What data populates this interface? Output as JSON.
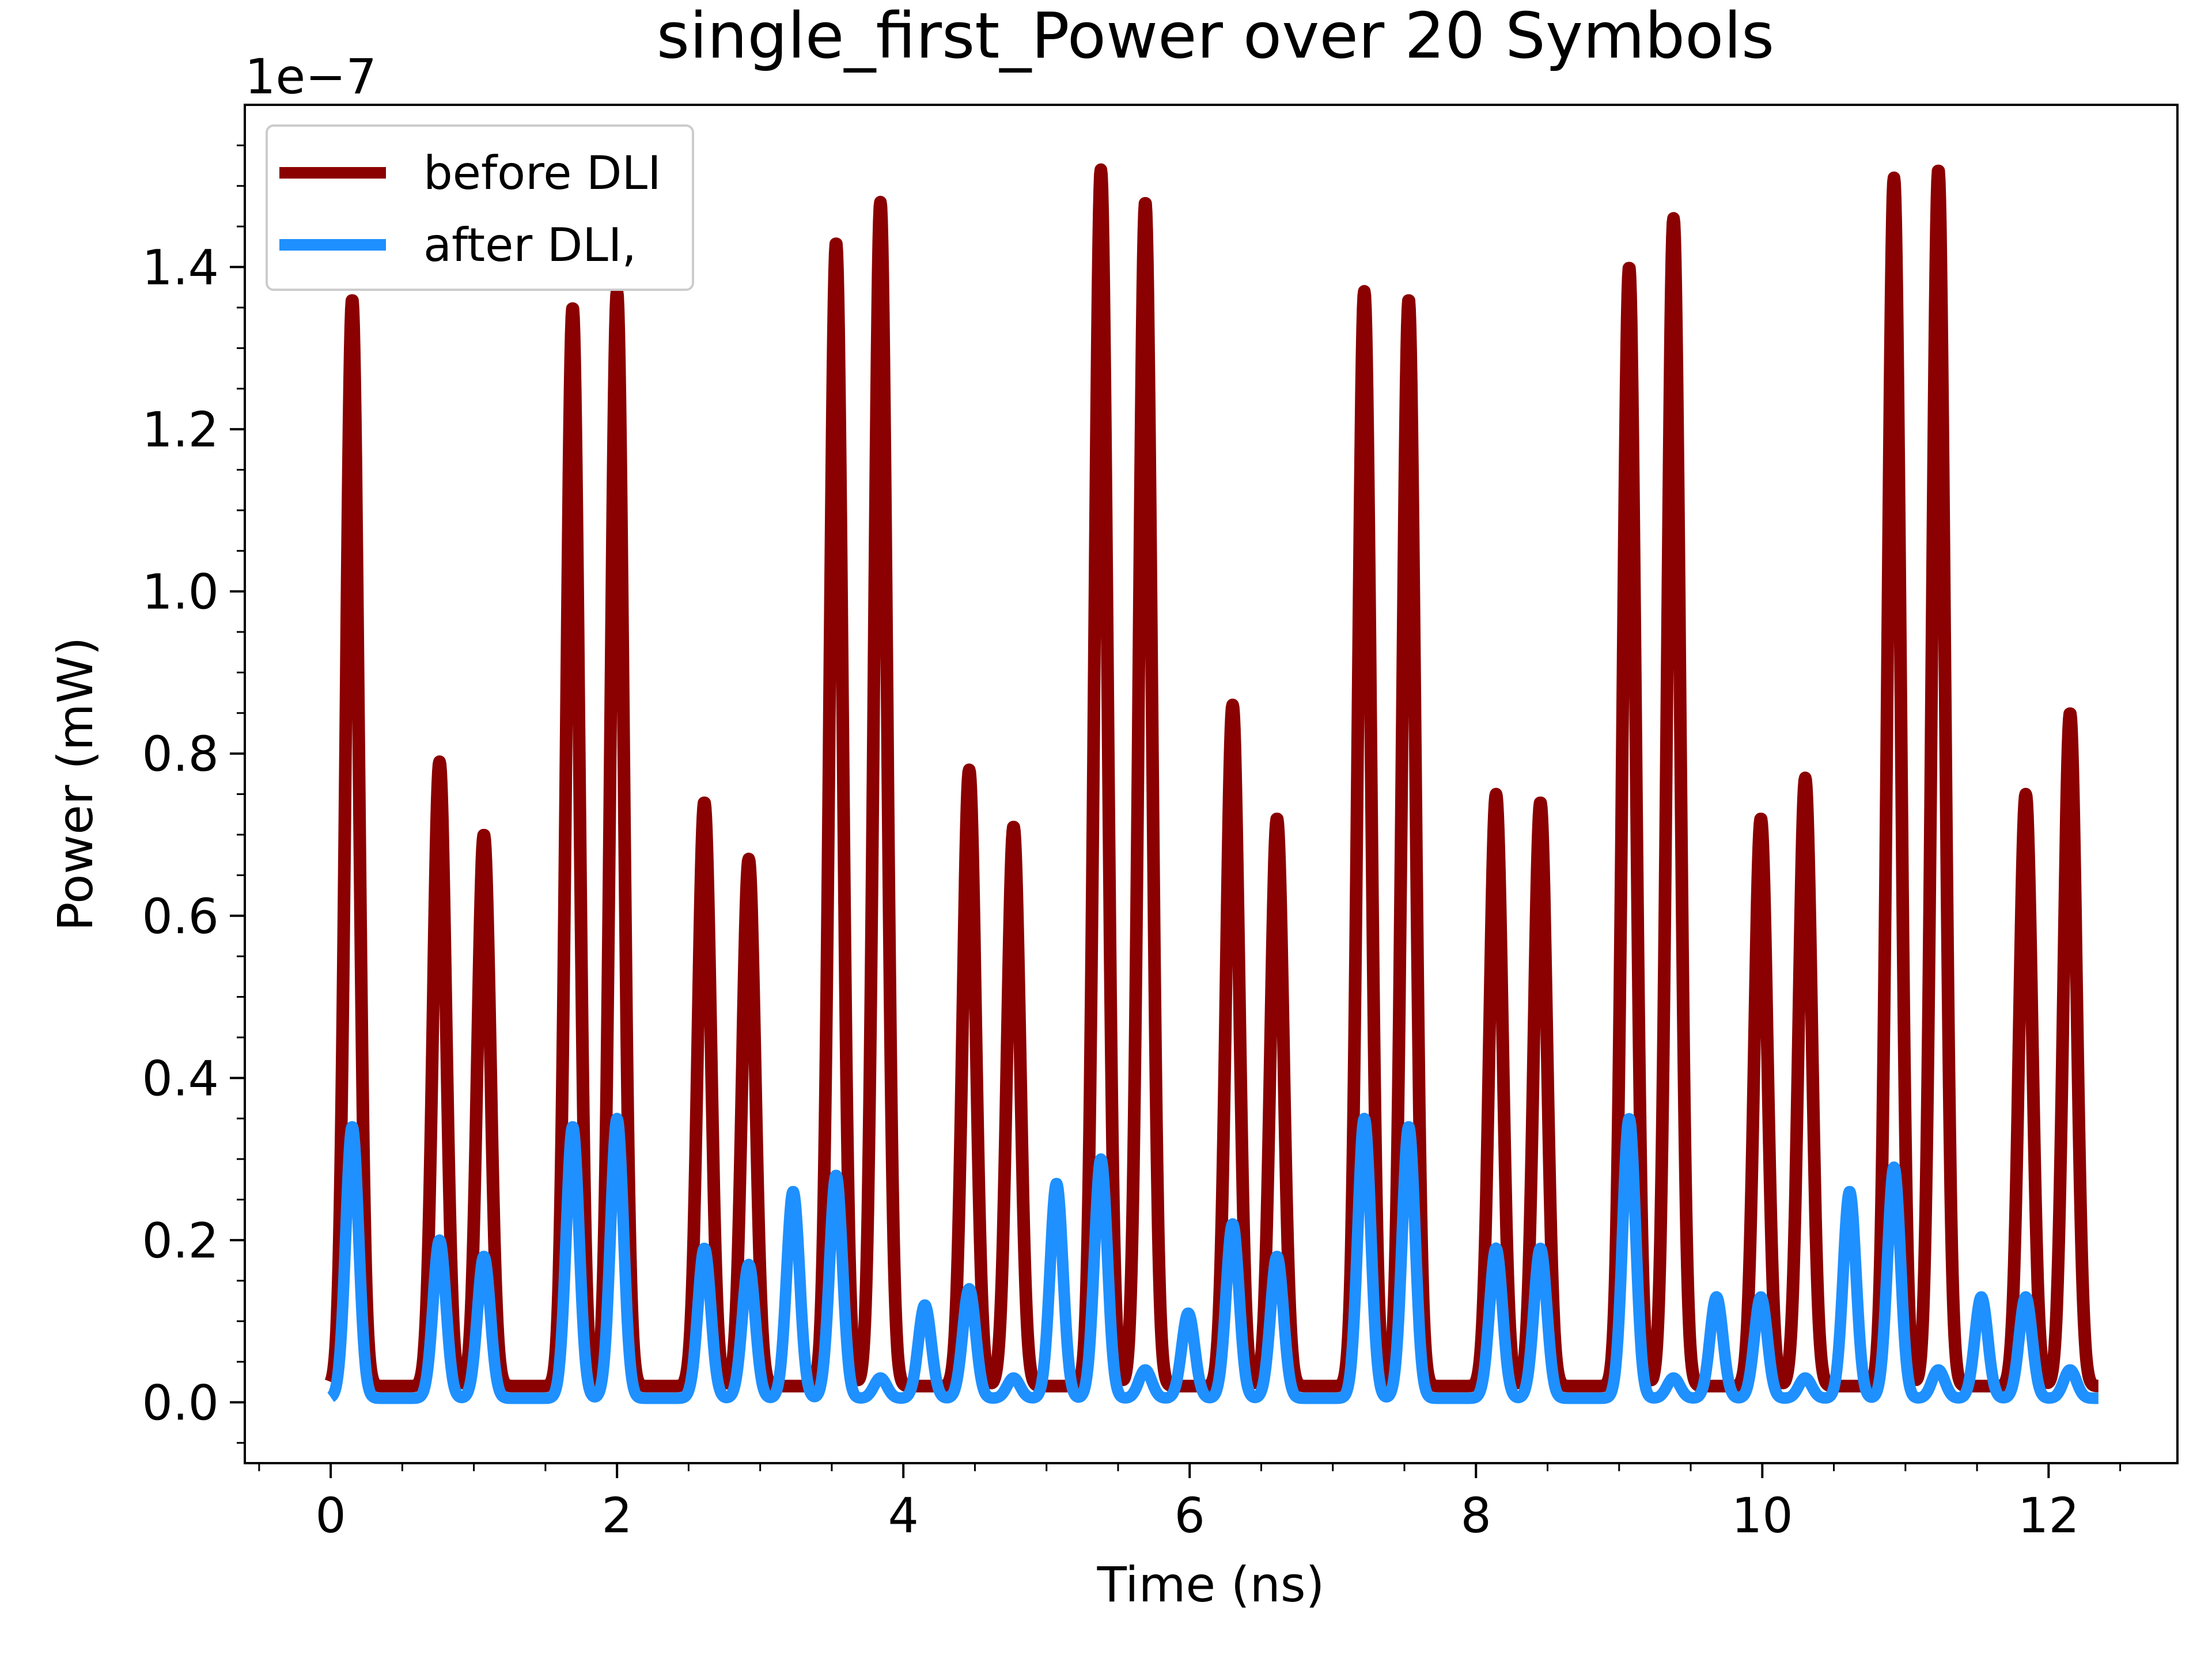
{
  "chart_data": {
    "type": "line",
    "title": "single_first_Power over 20 Symbols",
    "xlabel": "Time (ns)",
    "ylabel": "Power (mW)",
    "y_offset_label": "1e−7",
    "xlim": [
      -0.6,
      12.9
    ],
    "ylim": [
      -0.075,
      1.6
    ],
    "x_ticks": [
      0,
      2,
      4,
      6,
      8,
      10,
      12
    ],
    "x_tick_labels": [
      "0",
      "2",
      "4",
      "6",
      "8",
      "10",
      "12"
    ],
    "y_ticks": [
      0.0,
      0.2,
      0.4,
      0.6,
      0.8,
      1.0,
      1.2,
      1.4
    ],
    "y_tick_labels": [
      "0.0",
      "0.2",
      "0.4",
      "0.6",
      "0.8",
      "1.0",
      "1.2",
      "1.4"
    ],
    "grid": false,
    "legend_position": "top-left",
    "x_end": 12.35,
    "series": [
      {
        "name": "before DLI",
        "color": "#8b0000",
        "baseline": 0.02,
        "peaks": [
          {
            "t": 0.15,
            "v": 1.36
          },
          {
            "t": 0.76,
            "v": 0.79
          },
          {
            "t": 1.07,
            "v": 0.7
          },
          {
            "t": 1.69,
            "v": 1.35
          },
          {
            "t": 2.0,
            "v": 1.37
          },
          {
            "t": 2.61,
            "v": 0.74
          },
          {
            "t": 2.92,
            "v": 0.67
          },
          {
            "t": 3.53,
            "v": 1.43
          },
          {
            "t": 3.84,
            "v": 1.48
          },
          {
            "t": 4.46,
            "v": 0.78
          },
          {
            "t": 4.77,
            "v": 0.71
          },
          {
            "t": 5.38,
            "v": 1.52
          },
          {
            "t": 5.69,
            "v": 1.48
          },
          {
            "t": 6.3,
            "v": 0.86
          },
          {
            "t": 6.61,
            "v": 0.72
          },
          {
            "t": 7.22,
            "v": 1.37
          },
          {
            "t": 7.53,
            "v": 1.36
          },
          {
            "t": 8.14,
            "v": 0.75
          },
          {
            "t": 8.45,
            "v": 0.74
          },
          {
            "t": 9.07,
            "v": 1.4
          },
          {
            "t": 9.38,
            "v": 1.46
          },
          {
            "t": 9.99,
            "v": 0.72
          },
          {
            "t": 10.3,
            "v": 0.77
          },
          {
            "t": 10.92,
            "v": 1.51
          },
          {
            "t": 11.23,
            "v": 1.52
          },
          {
            "t": 11.84,
            "v": 0.75
          },
          {
            "t": 12.15,
            "v": 0.85
          }
        ]
      },
      {
        "name": "after DLI,",
        "color": "#1e90ff",
        "baseline": 0.005,
        "peaks": [
          {
            "t": 0.15,
            "v": 0.34
          },
          {
            "t": 0.76,
            "v": 0.2
          },
          {
            "t": 1.07,
            "v": 0.18
          },
          {
            "t": 1.69,
            "v": 0.34
          },
          {
            "t": 2.0,
            "v": 0.35
          },
          {
            "t": 2.61,
            "v": 0.19
          },
          {
            "t": 2.92,
            "v": 0.17
          },
          {
            "t": 3.23,
            "v": 0.26
          },
          {
            "t": 3.53,
            "v": 0.28
          },
          {
            "t": 3.84,
            "v": 0.03
          },
          {
            "t": 4.15,
            "v": 0.12
          },
          {
            "t": 4.46,
            "v": 0.14
          },
          {
            "t": 4.77,
            "v": 0.03
          },
          {
            "t": 5.07,
            "v": 0.27
          },
          {
            "t": 5.38,
            "v": 0.3
          },
          {
            "t": 5.69,
            "v": 0.04
          },
          {
            "t": 5.99,
            "v": 0.11
          },
          {
            "t": 6.3,
            "v": 0.22
          },
          {
            "t": 6.61,
            "v": 0.18
          },
          {
            "t": 7.22,
            "v": 0.35
          },
          {
            "t": 7.53,
            "v": 0.34
          },
          {
            "t": 8.14,
            "v": 0.19
          },
          {
            "t": 8.45,
            "v": 0.19
          },
          {
            "t": 9.07,
            "v": 0.35
          },
          {
            "t": 9.38,
            "v": 0.03
          },
          {
            "t": 9.68,
            "v": 0.13
          },
          {
            "t": 9.99,
            "v": 0.13
          },
          {
            "t": 10.3,
            "v": 0.03
          },
          {
            "t": 10.61,
            "v": 0.26
          },
          {
            "t": 10.92,
            "v": 0.29
          },
          {
            "t": 11.23,
            "v": 0.04
          },
          {
            "t": 11.53,
            "v": 0.13
          },
          {
            "t": 11.84,
            "v": 0.13
          },
          {
            "t": 12.15,
            "v": 0.04
          }
        ]
      }
    ]
  }
}
